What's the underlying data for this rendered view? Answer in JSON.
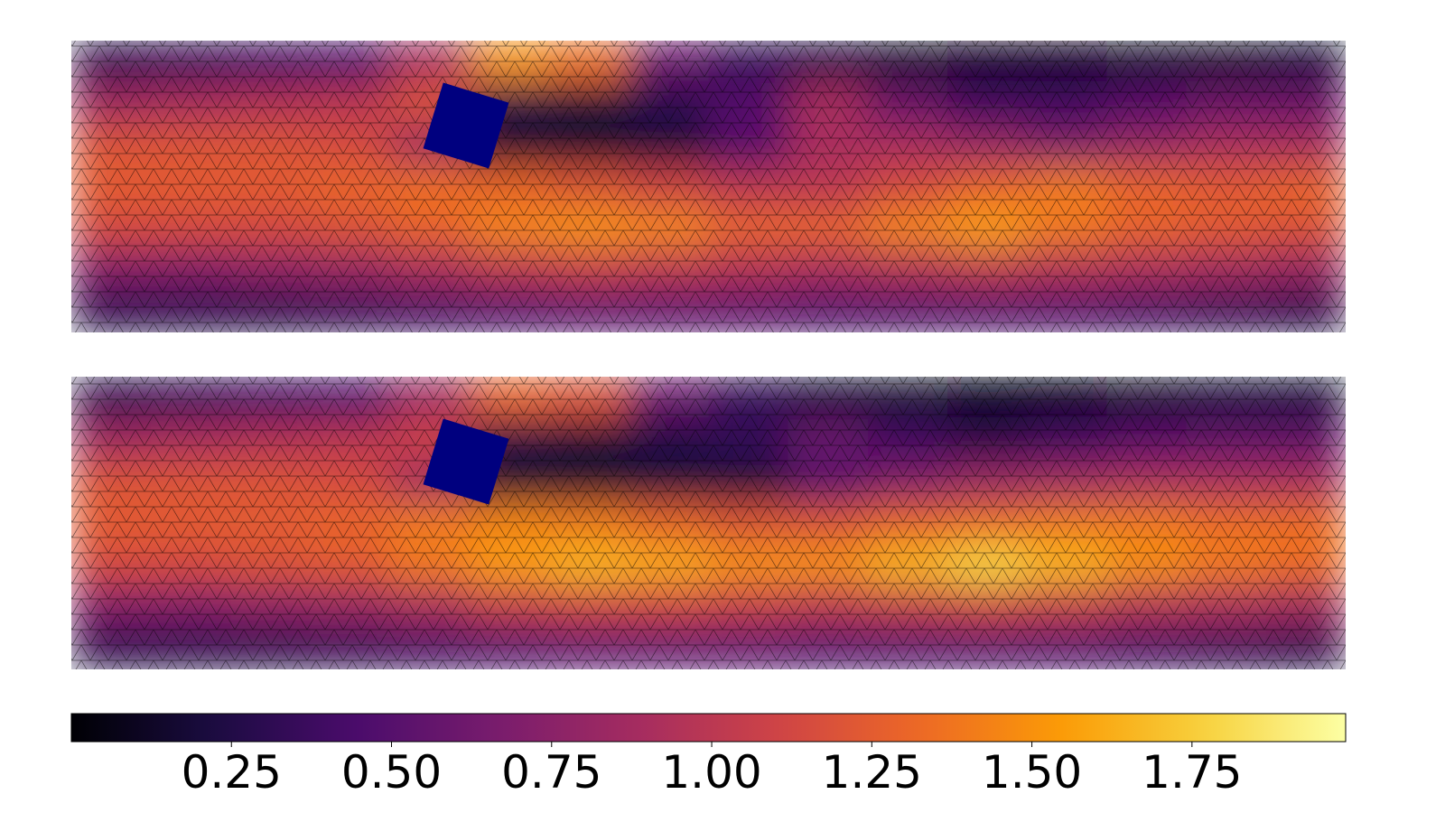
{
  "chart_data": {
    "type": "heatmap",
    "colormap": "inferno",
    "clim": [
      0,
      1.99
    ],
    "panels": [
      {
        "values": [
          [
            0.3,
            0.35,
            0.4,
            0.45,
            0.9,
            1.5,
            1.35,
            0.6,
            0.35,
            0.25,
            0.15,
            0.1,
            0.1,
            0.15,
            0.15,
            0.2
          ],
          [
            0.85,
            0.9,
            0.95,
            1.0,
            1.2,
            0.25,
            0.2,
            0.3,
            0.5,
            0.9,
            0.6,
            0.4,
            0.4,
            0.5,
            0.6,
            0.6
          ],
          [
            1.2,
            1.2,
            1.2,
            1.15,
            0.85,
            0.15,
            0.15,
            0.2,
            0.5,
            0.9,
            0.9,
            0.8,
            0.7,
            0.8,
            0.9,
            0.9
          ],
          [
            1.25,
            1.25,
            1.25,
            1.3,
            1.35,
            1.3,
            1.2,
            1.1,
            1.0,
            1.0,
            1.15,
            1.3,
            1.4,
            1.3,
            1.25,
            1.3
          ],
          [
            1.15,
            1.15,
            1.15,
            1.2,
            1.3,
            1.45,
            1.5,
            1.45,
            1.3,
            1.3,
            1.45,
            1.55,
            1.4,
            1.3,
            1.25,
            1.2
          ],
          [
            0.7,
            0.7,
            0.75,
            0.8,
            0.9,
            1.0,
            1.05,
            1.0,
            0.95,
            0.9,
            0.95,
            1.0,
            0.95,
            0.9,
            0.85,
            0.8
          ],
          [
            0.3,
            0.3,
            0.3,
            0.35,
            0.4,
            0.45,
            0.5,
            0.5,
            0.5,
            0.45,
            0.45,
            0.45,
            0.45,
            0.4,
            0.35,
            0.3
          ]
        ]
      },
      {
        "values": [
          [
            0.3,
            0.35,
            0.4,
            0.45,
            0.85,
            1.3,
            1.2,
            0.6,
            0.35,
            0.2,
            0.15,
            0.05,
            0.05,
            0.15,
            0.2,
            0.2
          ],
          [
            0.85,
            0.9,
            0.95,
            1.0,
            1.1,
            0.25,
            0.2,
            0.25,
            0.35,
            0.6,
            0.4,
            0.3,
            0.4,
            0.5,
            0.55,
            0.55
          ],
          [
            1.2,
            1.2,
            1.2,
            1.15,
            0.85,
            0.15,
            0.15,
            0.2,
            0.2,
            0.5,
            0.7,
            0.8,
            0.85,
            0.9,
            0.9,
            0.9
          ],
          [
            1.25,
            1.25,
            1.25,
            1.3,
            1.4,
            1.45,
            1.4,
            1.3,
            1.2,
            1.2,
            1.3,
            1.35,
            1.4,
            1.4,
            1.35,
            1.35
          ],
          [
            1.15,
            1.15,
            1.2,
            1.25,
            1.4,
            1.55,
            1.65,
            1.6,
            1.5,
            1.5,
            1.65,
            1.78,
            1.65,
            1.5,
            1.4,
            1.35
          ],
          [
            0.7,
            0.7,
            0.75,
            0.8,
            0.9,
            1.05,
            1.1,
            1.1,
            1.05,
            1.0,
            1.05,
            1.1,
            1.05,
            0.95,
            0.9,
            0.85
          ],
          [
            0.3,
            0.3,
            0.3,
            0.35,
            0.4,
            0.45,
            0.5,
            0.5,
            0.5,
            0.45,
            0.45,
            0.45,
            0.45,
            0.4,
            0.35,
            0.3
          ]
        ]
      }
    ],
    "colorbar_ticks": [
      0.25,
      {
        "value": 0.5,
        "label": "0.50"
      },
      0.75,
      {
        "value": 1,
        "label": "1.00"
      },
      1.25,
      {
        "value": 1.5,
        "label": "1.50"
      },
      1.75
    ]
  }
}
